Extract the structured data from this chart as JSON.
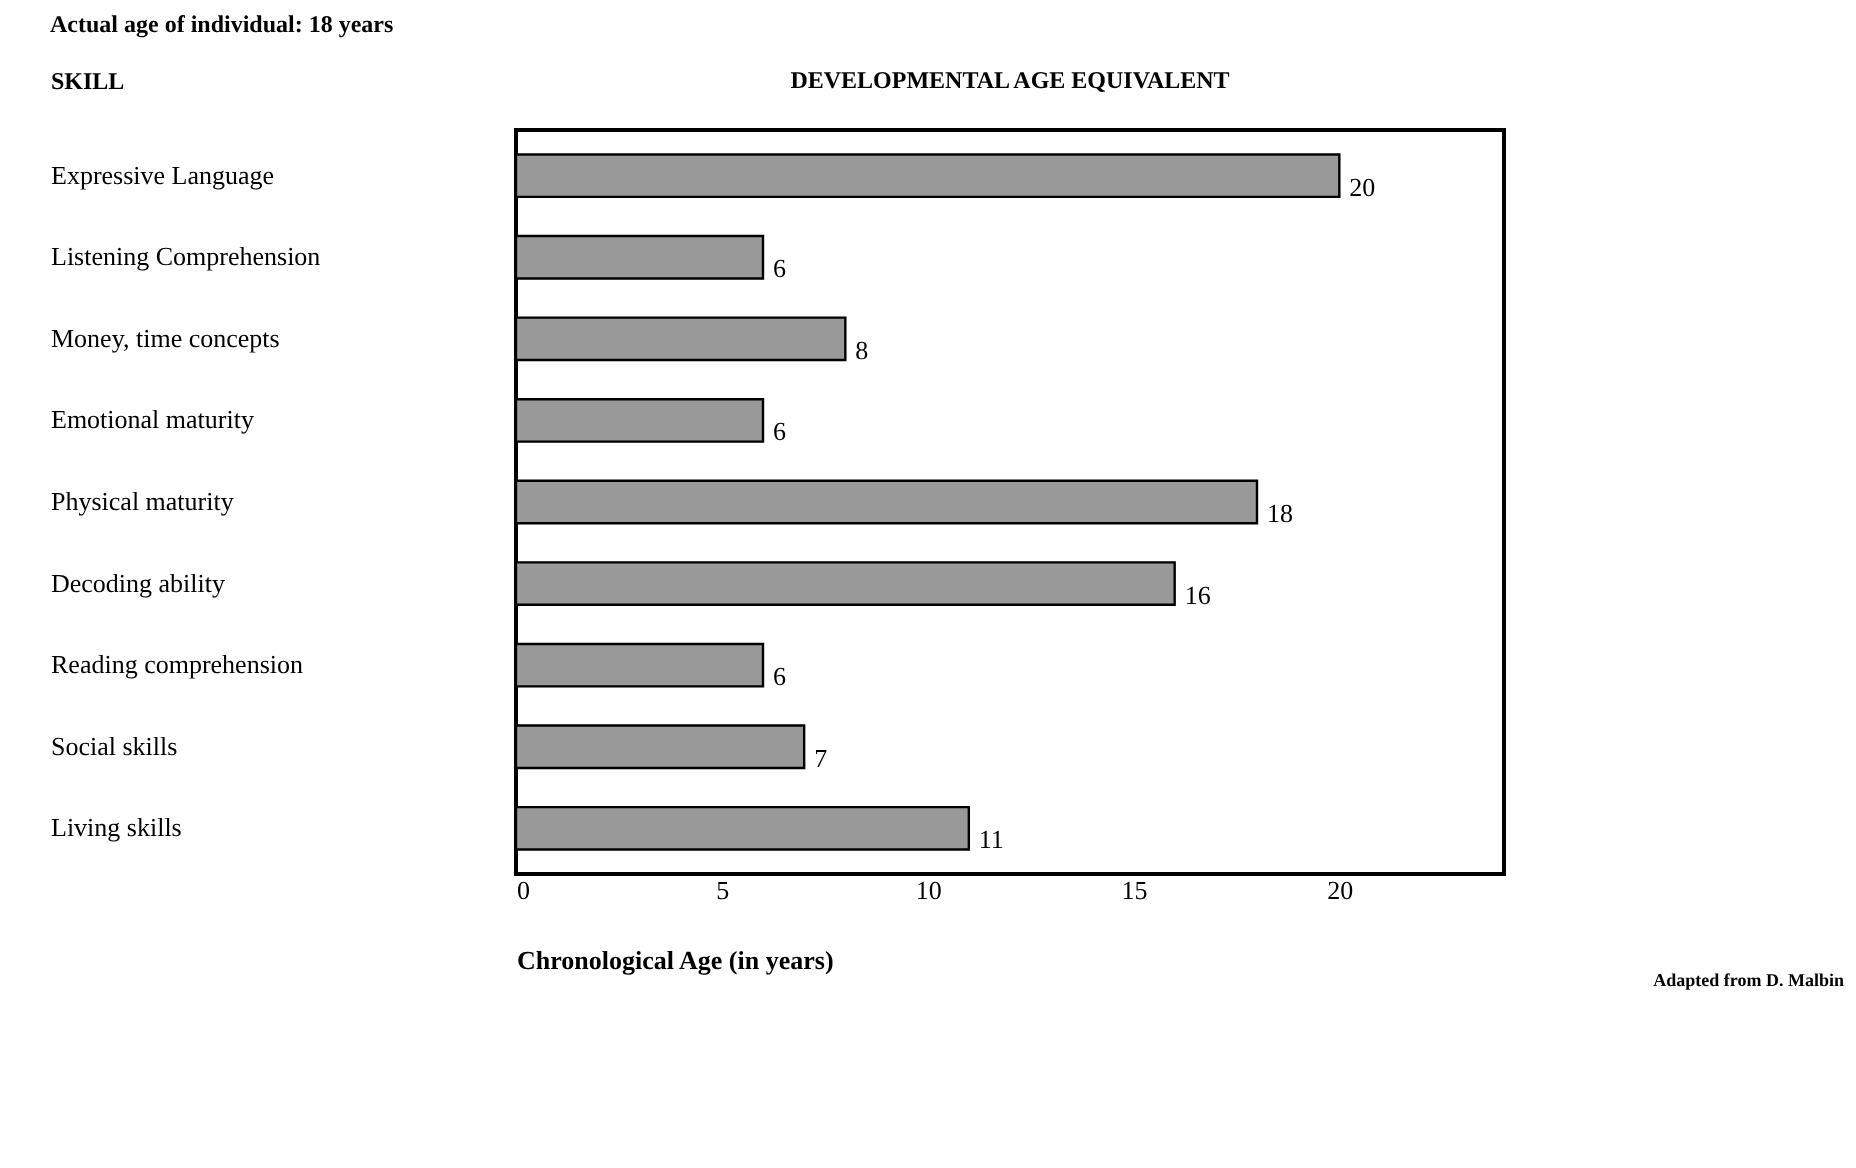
{
  "chart_data": {
    "type": "bar",
    "orientation": "horizontal",
    "title": "DEVELOPMENTAL AGE EQUIVALENT",
    "ylabel": "SKILL",
    "xlabel": "Chronological Age (in years)",
    "categories": [
      "Expressive Language",
      "Listening Comprehension",
      "Money, time concepts",
      "Emotional maturity",
      "Physical maturity",
      "Decoding ability",
      "Reading comprehension",
      "Social skills",
      "Living skills"
    ],
    "values": [
      20,
      6,
      8,
      6,
      18,
      16,
      6,
      7,
      11
    ],
    "color": "#999999",
    "data_labels": true,
    "grid": false,
    "xlim": [
      0,
      24
    ],
    "xticks": [
      0,
      5,
      10,
      15,
      20
    ],
    "annotations": [
      "Actual age of individual: 18 years",
      "Adapted from D. Malbin"
    ]
  }
}
